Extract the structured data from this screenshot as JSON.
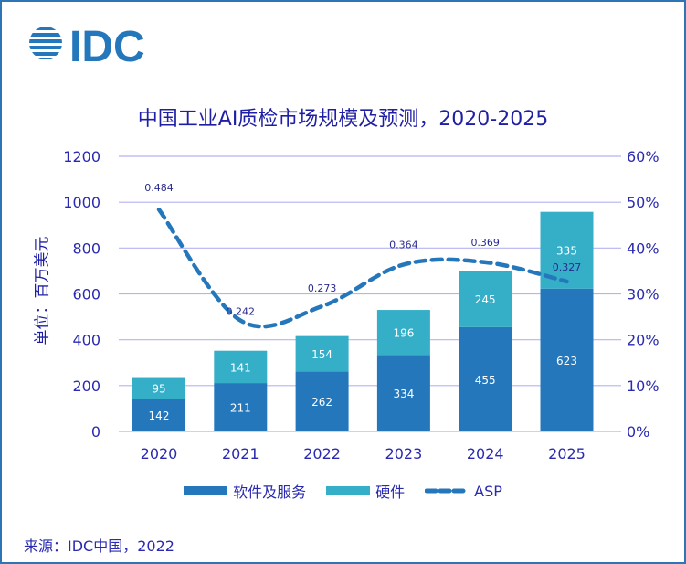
{
  "logo": {
    "text": "IDC"
  },
  "chart_data": {
    "type": "bar",
    "title": "中国工业AI质检市场规模及预测，2020-2025",
    "ylabel": "单位：百万美元",
    "categories": [
      "2020",
      "2021",
      "2022",
      "2023",
      "2024",
      "2025"
    ],
    "ylim": [
      0,
      1200
    ],
    "yticks": [
      "0",
      "200",
      "400",
      "600",
      "800",
      "1000",
      "1200"
    ],
    "y2lim": [
      0,
      0.6
    ],
    "y2ticks": [
      "0%",
      "10%",
      "20%",
      "30%",
      "40%",
      "50%",
      "60%"
    ],
    "stacked": true,
    "grid": true,
    "legend_position": "bottom",
    "series": [
      {
        "name": "软件及服务",
        "type": "bar",
        "color": "#2577BC",
        "values": [
          142,
          211,
          262,
          334,
          455,
          623
        ]
      },
      {
        "name": "硬件",
        "type": "bar",
        "color": "#35AEC8",
        "values": [
          95,
          141,
          154,
          196,
          245,
          335
        ]
      },
      {
        "name": "ASP",
        "type": "line",
        "style": "dashed",
        "axis": "right",
        "color": "#2577BC",
        "values": [
          0.484,
          0.242,
          0.273,
          0.364,
          0.369,
          0.327
        ]
      }
    ]
  },
  "source": "来源：IDC中国，2022"
}
